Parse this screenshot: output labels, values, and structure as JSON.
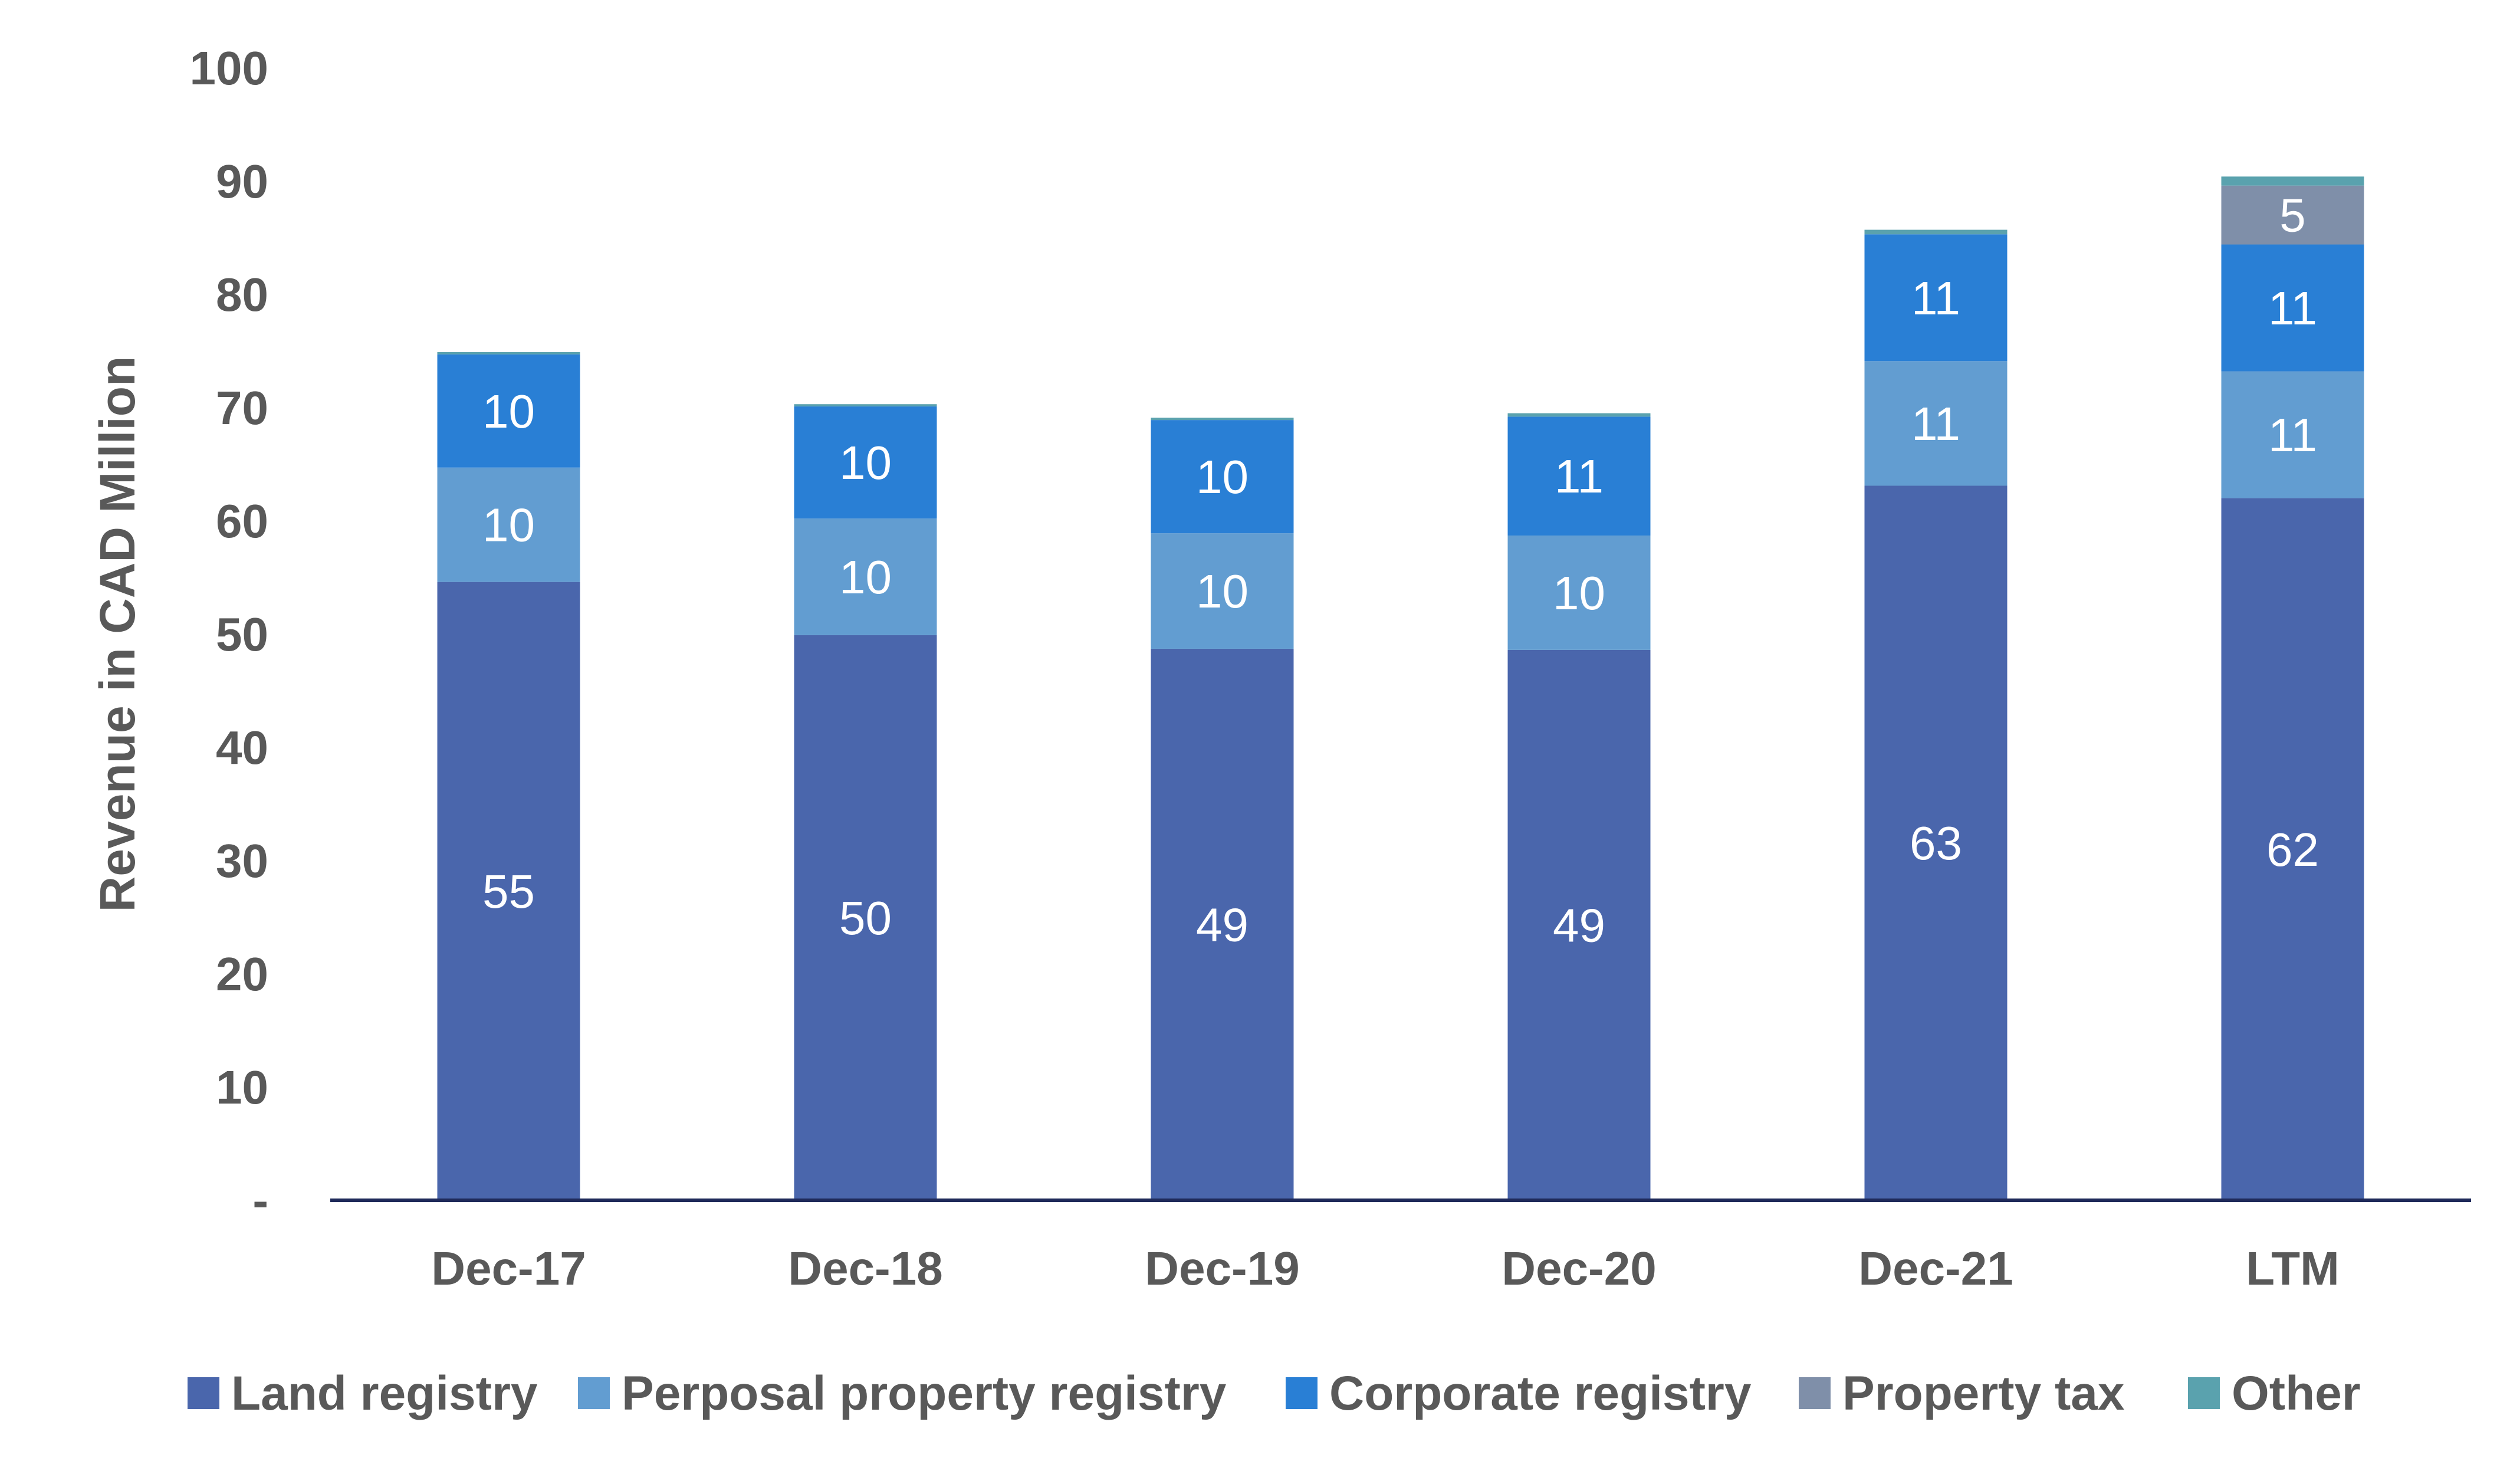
{
  "chart_data": {
    "type": "bar",
    "stacked": true,
    "ylabel": "Revenue in CAD Million",
    "ylim": [
      0,
      100
    ],
    "yticks": [
      {
        "value": 0,
        "label": "-"
      },
      {
        "value": 10,
        "label": "10"
      },
      {
        "value": 20,
        "label": "20"
      },
      {
        "value": 30,
        "label": "30"
      },
      {
        "value": 40,
        "label": "40"
      },
      {
        "value": 50,
        "label": "50"
      },
      {
        "value": 60,
        "label": "60"
      },
      {
        "value": 70,
        "label": "70"
      },
      {
        "value": 80,
        "label": "80"
      },
      {
        "value": 90,
        "label": "90"
      },
      {
        "value": 100,
        "label": "100"
      }
    ],
    "categories": [
      "Dec-17",
      "Dec-18",
      "Dec-19",
      "Dec-20",
      "Dec-21",
      "LTM"
    ],
    "series": [
      {
        "name": "Land registry",
        "color": "#4a66ac",
        "values": [
          54.6,
          49.9,
          48.7,
          48.6,
          63.1,
          62.0
        ],
        "labels": [
          "55",
          "50",
          "49",
          "49",
          "63",
          "62"
        ]
      },
      {
        "name": "Perposal property registry",
        "color": "#629dd1",
        "values": [
          10.1,
          10.3,
          10.2,
          10.1,
          11.0,
          11.2
        ],
        "labels": [
          "10",
          "10",
          "10",
          "10",
          "11",
          "11"
        ]
      },
      {
        "name": "Corporate registry",
        "color": "#297fd5",
        "values": [
          10.0,
          9.9,
          10.0,
          10.5,
          11.2,
          11.2
        ],
        "labels": [
          "10",
          "10",
          "10",
          "11",
          "11",
          "11"
        ]
      },
      {
        "name": "Property tax",
        "color": "#7f8fa9",
        "values": [
          0,
          0,
          0,
          0,
          0,
          5.2
        ],
        "labels": [
          "",
          "",
          "",
          "",
          "",
          "5"
        ]
      },
      {
        "name": "Other",
        "color": "#5aa2ae",
        "values": [
          0.2,
          0.2,
          0.2,
          0.3,
          0.4,
          0.8
        ],
        "labels": [
          "",
          "",
          "",
          "",
          "",
          ""
        ]
      }
    ],
    "legend_position": "bottom",
    "grid": false
  }
}
